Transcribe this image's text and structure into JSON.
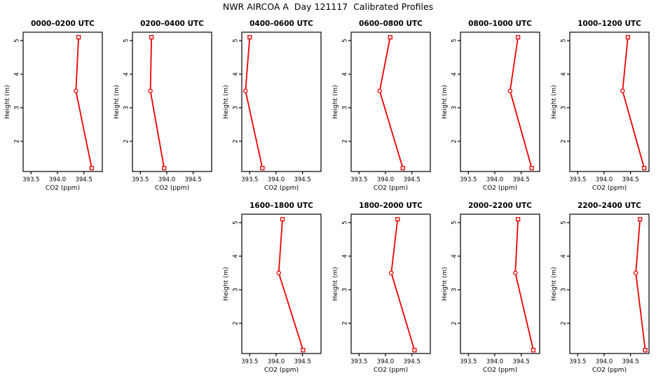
{
  "page": {
    "background_color": "#ffffff",
    "text_color": "#000000"
  },
  "chart_data": {
    "type": "line",
    "title": "NWR AIRCOA A  Day 121117  Calibrated Profiles",
    "xlabel": "CO2 (ppm)",
    "ylabel": "Height (m)",
    "xlim": [
      393.35,
      394.85
    ],
    "ylim": [
      1.1,
      5.25
    ],
    "xtick_values": [
      393.5,
      394.0,
      394.5
    ],
    "xtick_labels": [
      "393.5",
      "394.0",
      "394.5"
    ],
    "ytick_values": [
      2,
      3,
      4,
      5
    ],
    "ytick_labels": [
      "2",
      "3",
      "4",
      "5"
    ],
    "grid": false,
    "legend": "none",
    "line_color": "#ee0000",
    "marker_fill": "#ffffff",
    "box_color": "#000000",
    "heights_m": [
      1.2,
      3.5,
      5.1
    ],
    "marker_shapes": [
      "square",
      "circle",
      "square"
    ],
    "panels": [
      {
        "title": "0000–0200 UTC",
        "row": 0,
        "col": 0,
        "co2_ppm": [
          394.65,
          394.35,
          394.4
        ]
      },
      {
        "title": "0200–0400 UTC",
        "row": 0,
        "col": 1,
        "co2_ppm": [
          393.95,
          393.69,
          393.71
        ]
      },
      {
        "title": "0400–0600 UTC",
        "row": 0,
        "col": 2,
        "co2_ppm": [
          393.74,
          393.42,
          393.5
        ]
      },
      {
        "title": "0600–0800 UTC",
        "row": 0,
        "col": 3,
        "co2_ppm": [
          394.33,
          393.89,
          394.09
        ]
      },
      {
        "title": "0800–1000 UTC",
        "row": 0,
        "col": 4,
        "co2_ppm": [
          394.7,
          394.29,
          394.44
        ]
      },
      {
        "title": "1000–1200 UTC",
        "row": 0,
        "col": 5,
        "co2_ppm": [
          394.76,
          394.35,
          394.45
        ]
      },
      {
        "title": "1600–1800 UTC",
        "row": 1,
        "col": 2,
        "co2_ppm": [
          394.51,
          394.05,
          394.12
        ]
      },
      {
        "title": "1800–2000 UTC",
        "row": 1,
        "col": 3,
        "co2_ppm": [
          394.55,
          394.11,
          394.23
        ]
      },
      {
        "title": "2000–2200 UTC",
        "row": 1,
        "col": 4,
        "co2_ppm": [
          394.73,
          394.39,
          394.44
        ]
      },
      {
        "title": "2200–2400 UTC",
        "row": 1,
        "col": 5,
        "co2_ppm": [
          394.78,
          394.6,
          394.68
        ]
      }
    ]
  }
}
